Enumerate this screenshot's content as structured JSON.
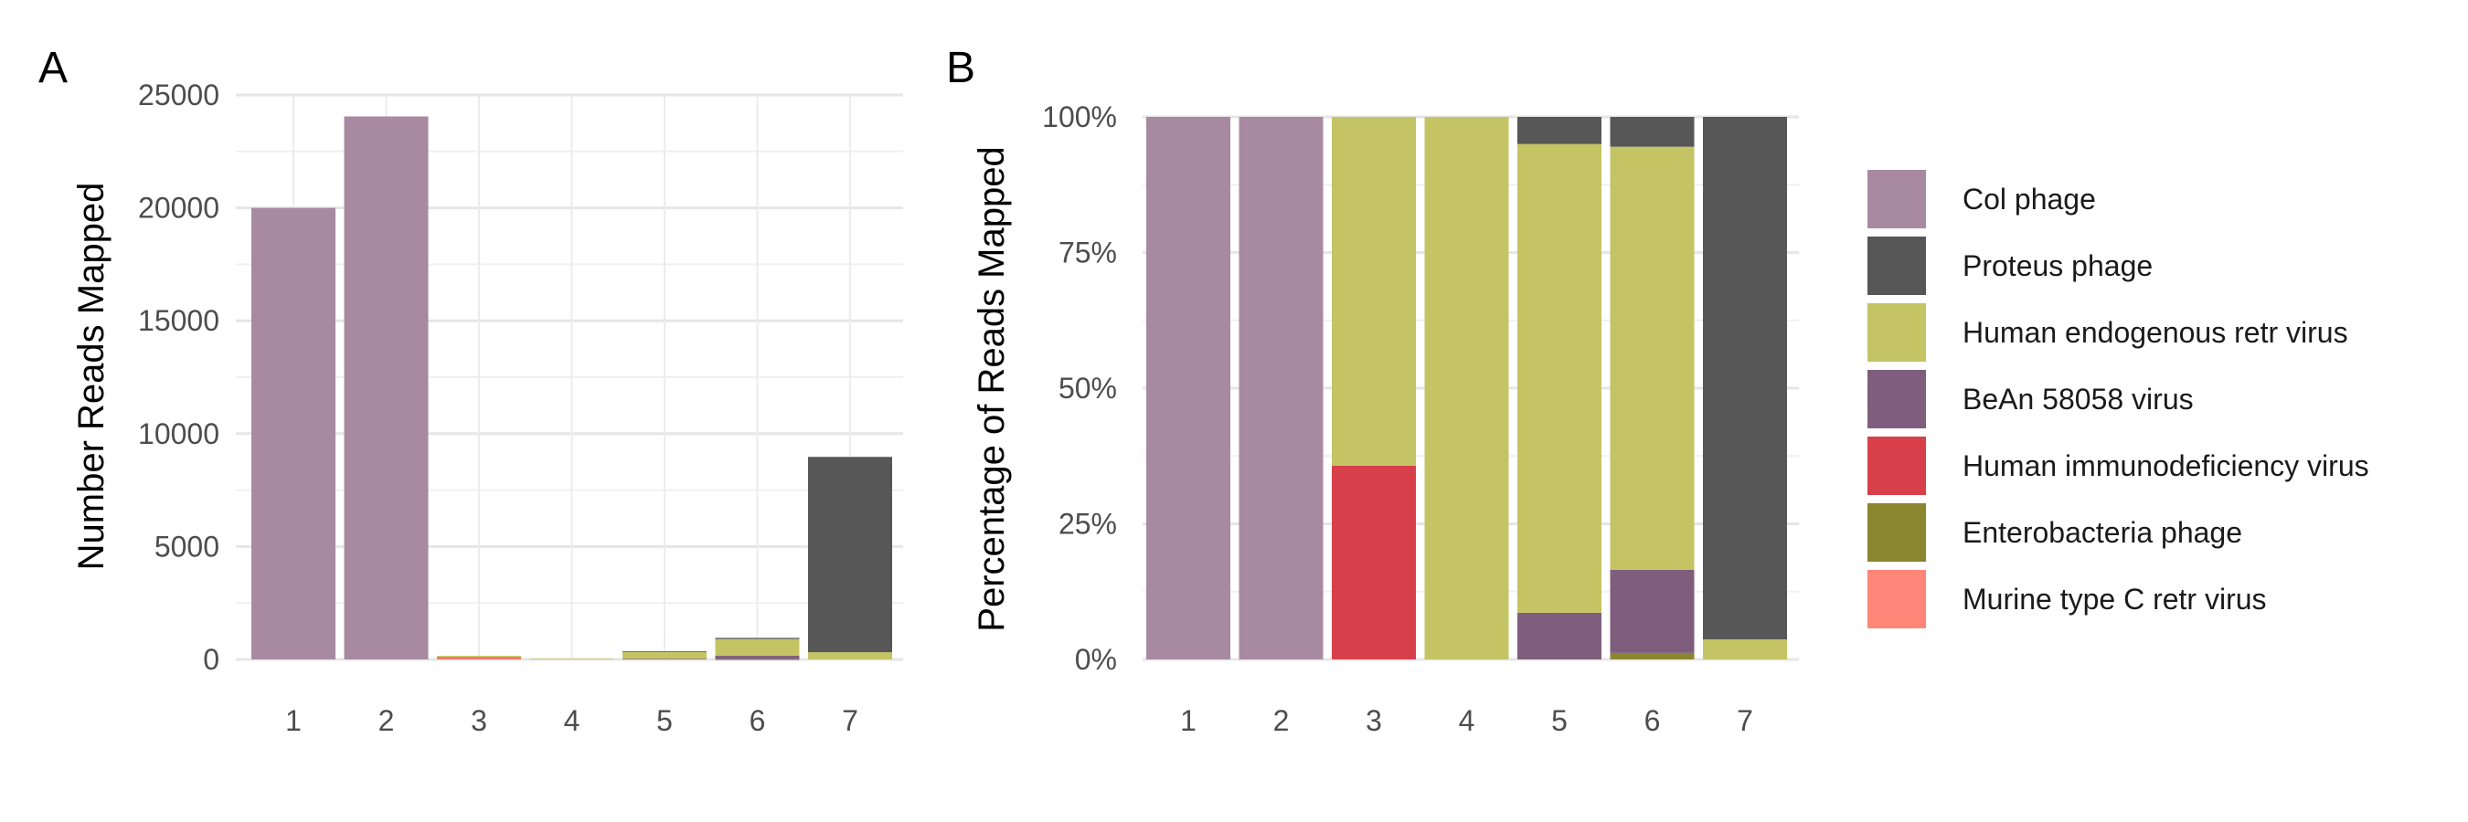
{
  "series_meta": [
    {
      "name": "Col phage",
      "color": "#a78aa2"
    },
    {
      "name": "Proteus phage",
      "color": "#575757"
    },
    {
      "name": "Human endogenous retr virus",
      "color": "#c4c464"
    },
    {
      "name": "BeAn 58058 virus",
      "color": "#7e5e7c"
    },
    {
      "name": "Human immunodeficiency virus",
      "color": "#d7404a"
    },
    {
      "name": "Enterobacteria phage",
      "color": "#8a8730"
    },
    {
      "name": "Murine type C retr virus",
      "color": "#fe8678"
    }
  ],
  "chart_data": [
    {
      "panel": "A",
      "type": "bar",
      "stacked": true,
      "categories": [
        "1",
        "2",
        "3",
        "4",
        "5",
        "6",
        "7"
      ],
      "ylabel": "Number Reads Mapped",
      "xlabel": "",
      "ylim": [
        0,
        25000
      ],
      "yticks": [
        0,
        5000,
        10000,
        15000,
        20000,
        25000
      ],
      "ytick_labels": [
        "0",
        "5000",
        "10000",
        "15000",
        "20000",
        "25000"
      ],
      "grid": true,
      "series": [
        {
          "name": "Col phage",
          "values": [
            20000,
            24050,
            0,
            0,
            0,
            0,
            0
          ]
        },
        {
          "name": "Proteus phage",
          "values": [
            0,
            0,
            0,
            0,
            20,
            55,
            8650
          ]
        },
        {
          "name": "Human endogenous retr virus",
          "values": [
            0,
            0,
            65,
            30,
            310,
            740,
            320
          ]
        },
        {
          "name": "BeAn 58058 virus",
          "values": [
            0,
            0,
            0,
            0,
            30,
            150,
            0
          ]
        },
        {
          "name": "Human immunodeficiency virus",
          "values": [
            0,
            0,
            35,
            0,
            0,
            0,
            0
          ]
        },
        {
          "name": "Enterobacteria phage",
          "values": [
            0,
            0,
            0,
            0,
            0,
            10,
            0
          ]
        },
        {
          "name": "Murine type C retr virus",
          "values": [
            0,
            0,
            60,
            0,
            0,
            0,
            0
          ]
        }
      ]
    },
    {
      "panel": "B",
      "type": "bar",
      "stacked": true,
      "categories": [
        "1",
        "2",
        "3",
        "4",
        "5",
        "6",
        "7"
      ],
      "ylabel": "Percentage of Reads Mapped",
      "xlabel": "",
      "ylim": [
        0,
        100
      ],
      "yticks": [
        0,
        25,
        50,
        75,
        100
      ],
      "ytick_labels": [
        "0%",
        "25%",
        "50%",
        "75%",
        "100%"
      ],
      "grid": true,
      "legend": "right",
      "series": [
        {
          "name": "Col phage",
          "values": [
            100,
            100,
            0,
            0,
            0,
            0,
            0
          ]
        },
        {
          "name": "Proteus phage",
          "values": [
            0,
            0,
            0,
            0,
            5,
            5.5,
            96.3
          ]
        },
        {
          "name": "Human endogenous retr virus",
          "values": [
            0,
            0,
            64.3,
            100,
            86.4,
            78,
            3.7
          ]
        },
        {
          "name": "BeAn 58058 virus",
          "values": [
            0,
            0,
            0,
            0,
            8.6,
            15.3,
            0
          ]
        },
        {
          "name": "Human immunodeficiency virus",
          "values": [
            0,
            0,
            35.7,
            0,
            0,
            0,
            0
          ]
        },
        {
          "name": "Enterobacteria phage",
          "values": [
            0,
            0,
            0,
            0,
            0,
            1.2,
            0
          ]
        },
        {
          "name": "Murine type C retr virus",
          "values": [
            0,
            0,
            0,
            0,
            0,
            0,
            0
          ]
        }
      ]
    }
  ]
}
